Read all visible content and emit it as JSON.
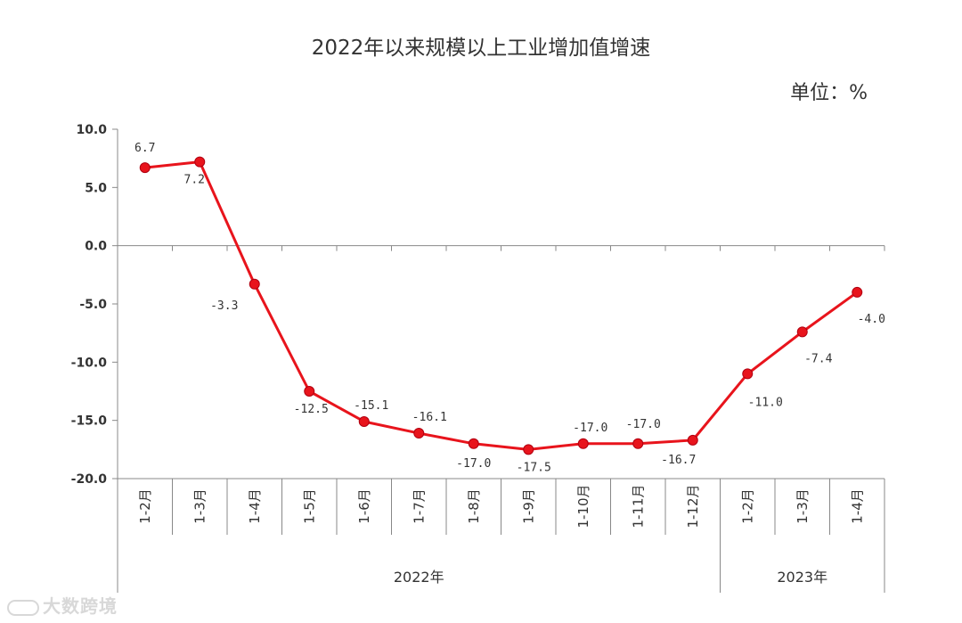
{
  "chart_data": {
    "type": "line",
    "title": "2022年以来规模以上工业增加值增速",
    "unit": "单位：%",
    "categories": [
      "1-2月",
      "1-3月",
      "1-4月",
      "1-5月",
      "1-6月",
      "1-7月",
      "1-8月",
      "1-9月",
      "1-10月",
      "1-11月",
      "1-12月",
      "1-2月",
      "1-3月",
      "1-4月"
    ],
    "groups": [
      {
        "label": "2022年",
        "count": 11
      },
      {
        "label": "2023年",
        "count": 3
      }
    ],
    "series": [
      {
        "values": [
          6.7,
          7.2,
          -3.3,
          -12.5,
          -15.1,
          -16.1,
          -17.0,
          -17.5,
          -17.0,
          -17.0,
          -16.7,
          -11.0,
          -7.4,
          -4.0
        ]
      }
    ],
    "data_labels": [
      "6.7",
      "7.2",
      "-3.3",
      "-12.5",
      "-15.1",
      "-16.1",
      "-17.0",
      "-17.5",
      "-17.0",
      "-17.0",
      "-16.7",
      "-11.0",
      "-7.4",
      "-4.0"
    ],
    "ylim": [
      -20,
      10
    ],
    "yticks": [
      10,
      5,
      0,
      -5,
      -10,
      -15,
      -20
    ],
    "ytick_labels": [
      "10.0",
      "5.0",
      "0.0",
      "-5.0",
      "-10.0",
      "-15.0",
      "-20.0"
    ],
    "grid": false,
    "line_color": "#e8141c"
  },
  "watermark": "大数跨境"
}
